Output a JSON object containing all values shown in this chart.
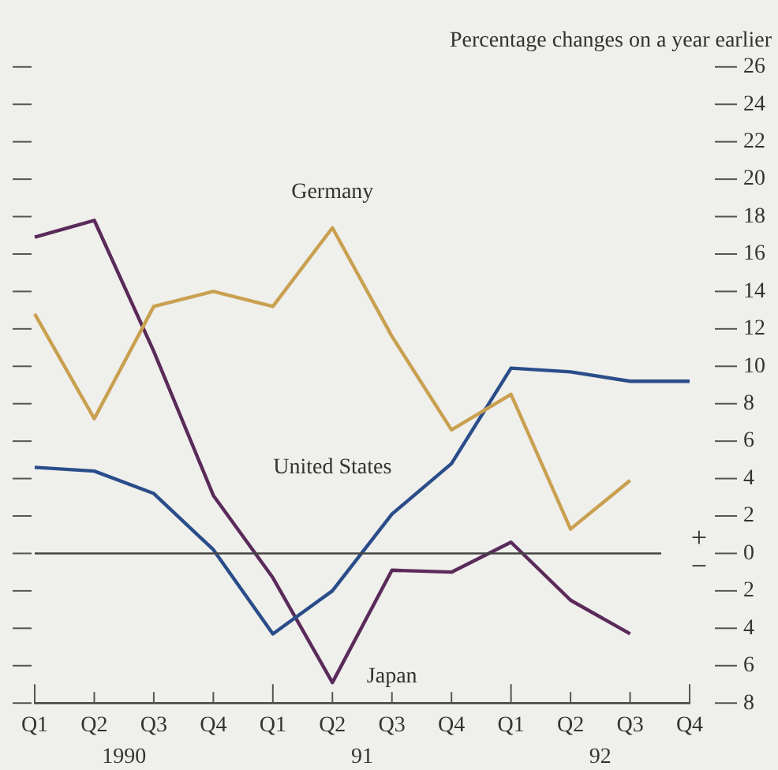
{
  "chart_data": {
    "type": "line",
    "ylabel": "Percentage changes on a year earlier",
    "categories": [
      "Q1",
      "Q2",
      "Q3",
      "Q4",
      "Q1",
      "Q2",
      "Q3",
      "Q4",
      "Q1",
      "Q2",
      "Q3",
      "Q4"
    ],
    "series": [
      {
        "name": "Germany",
        "color": "#c9a050",
        "values": [
          12.8,
          7.2,
          13.2,
          14.0,
          13.2,
          17.4,
          11.6,
          6.6,
          8.5,
          1.3,
          3.9,
          null
        ]
      },
      {
        "name": "United States",
        "color": "#2a4d8a",
        "values": [
          4.6,
          4.4,
          3.2,
          0.2,
          -4.3,
          -2.0,
          2.1,
          4.8,
          9.9,
          9.7,
          9.2,
          9.2
        ]
      },
      {
        "name": "Japan",
        "color": "#5a2a5a",
        "values": [
          16.9,
          17.8,
          10.8,
          3.1,
          -1.3,
          -6.9,
          -0.9,
          -1.0,
          0.6,
          -2.5,
          -4.3,
          null
        ]
      }
    ],
    "ylim": [
      -8,
      26
    ],
    "yticks": [
      26,
      24,
      22,
      20,
      18,
      16,
      14,
      12,
      10,
      8,
      6,
      4,
      2,
      0,
      {
        "value": -2,
        "label": "2"
      },
      {
        "value": -4,
        "label": "4"
      },
      {
        "value": -6,
        "label": "6"
      },
      {
        "value": -8,
        "label": "8"
      }
    ],
    "ref_lines": [
      {
        "axis": "y",
        "value": 0,
        "color": "#444444"
      }
    ],
    "annotations": [
      "1990",
      "91",
      "92",
      "+",
      "−"
    ],
    "legend": false,
    "marker": "none",
    "line_style": "solid"
  }
}
